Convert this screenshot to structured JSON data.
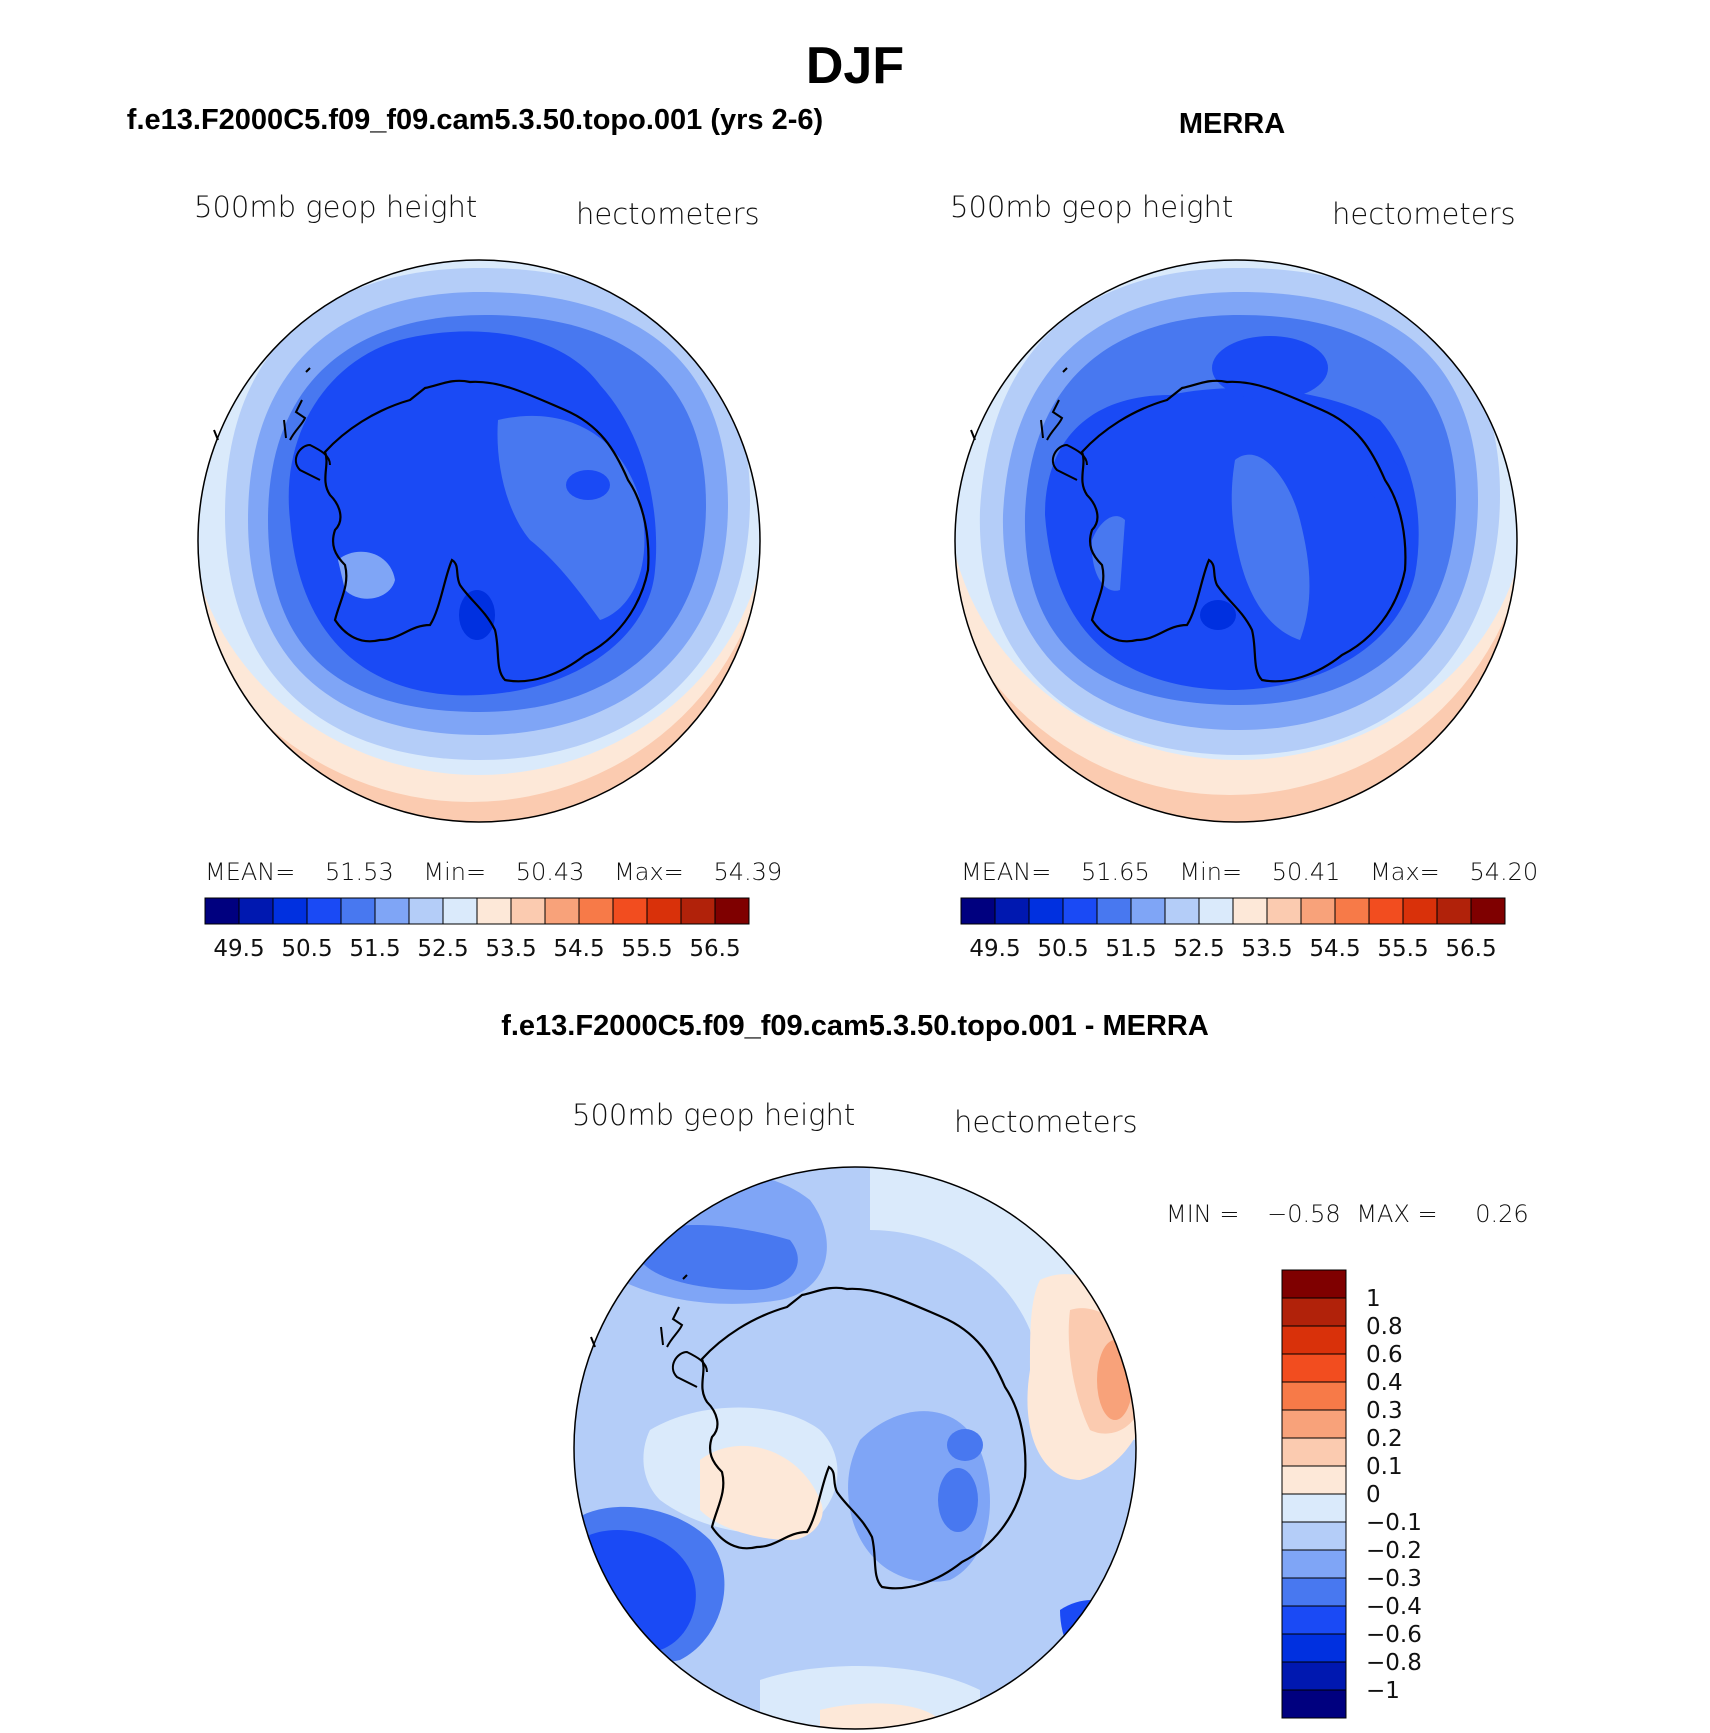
{
  "season_title": "DJF",
  "panels": {
    "model": {
      "title": "f.e13.F2000C5.f09_f09.cam5.3.50.topo.001 (yrs 2-6)",
      "field_label": "500mb geop height",
      "units": "hectometers",
      "stats": {
        "mean_label": "MEAN=",
        "mean": "51.53",
        "min_label": "Min=",
        "min": "50.43",
        "max_label": "Max=",
        "max": "54.39"
      }
    },
    "obs": {
      "title": "MERRA",
      "field_label": "500mb geop height",
      "units": "hectometers",
      "stats": {
        "mean_label": "MEAN=",
        "mean": "51.65",
        "min_label": "Min=",
        "min": "50.41",
        "max_label": "Max=",
        "max": "54.20"
      }
    },
    "diff": {
      "title": "f.e13.F2000C5.f09_f09.cam5.3.50.topo.001 - MERRA",
      "field_label": "500mb geop height",
      "units": "hectometers",
      "stats": {
        "min_label": "MIN =",
        "min": "−0.58",
        "max_label": "MAX =",
        "max": "0.26"
      }
    }
  },
  "colorbar_abs": {
    "colors": [
      "#00007f",
      "#0018b0",
      "#0030e0",
      "#1a4af5",
      "#4878f0",
      "#7fa5f6",
      "#b4cdf8",
      "#daeafb",
      "#fde8d8",
      "#fbcbb0",
      "#f8a27a",
      "#f77a48",
      "#f24d1f",
      "#d9310a",
      "#b1220a",
      "#7f0000"
    ],
    "labels": [
      "49.5",
      "50.5",
      "51.5",
      "52.5",
      "53.5",
      "54.5",
      "55.5",
      "56.5"
    ]
  },
  "colorbar_diff": {
    "colors": [
      "#7f0000",
      "#b1220a",
      "#d9310a",
      "#f24d1f",
      "#f77a48",
      "#f8a27a",
      "#fbcbb0",
      "#fde8d8",
      "#daeafb",
      "#b4cdf8",
      "#7fa5f6",
      "#4878f0",
      "#1a4af5",
      "#0030e0",
      "#0018b0",
      "#00007f"
    ],
    "labels": [
      "1",
      "0.8",
      "0.6",
      "0.4",
      "0.3",
      "0.2",
      "0.1",
      "0",
      "−0.1",
      "−0.2",
      "−0.3",
      "−0.4",
      "−0.6",
      "−0.8",
      "−1"
    ]
  },
  "map_colors": {
    "c_dark": "#0030e0",
    "c_1": "#1a4af5",
    "c_2": "#4878f0",
    "c_3": "#7fa5f6",
    "c_4": "#b4cdf8",
    "c_5": "#daeafb",
    "w_1": "#fde8d8",
    "w_2": "#fbcbb0",
    "w_3": "#f8a27a"
  }
}
